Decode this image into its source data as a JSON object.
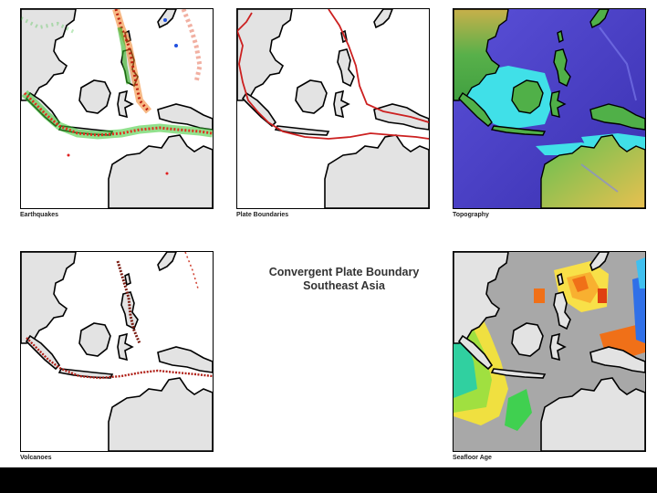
{
  "title": {
    "line1": "Convergent Plate Boundary",
    "line2": "Southeast Asia"
  },
  "panels": [
    {
      "caption": "Earthquakes",
      "icon": "earthquake-map"
    },
    {
      "caption": "Plate Boundaries",
      "icon": "plate-boundary-map"
    },
    {
      "caption": "Topography",
      "icon": "topography-map"
    },
    {
      "caption": "Volcanoes",
      "icon": "volcano-map"
    },
    {
      "caption": "Seafloor Age",
      "icon": "seafloor-age-map"
    }
  ],
  "colors": {
    "land": "#e3e3e3",
    "coast": "#000000",
    "boundary": "#cc2020",
    "ocean_deep": "#4a44c8",
    "ocean_shallow": "#40e0e8",
    "topo_land": "#58b04a",
    "seafloor_grey": "#a8a8a8",
    "frame": "#000000"
  }
}
